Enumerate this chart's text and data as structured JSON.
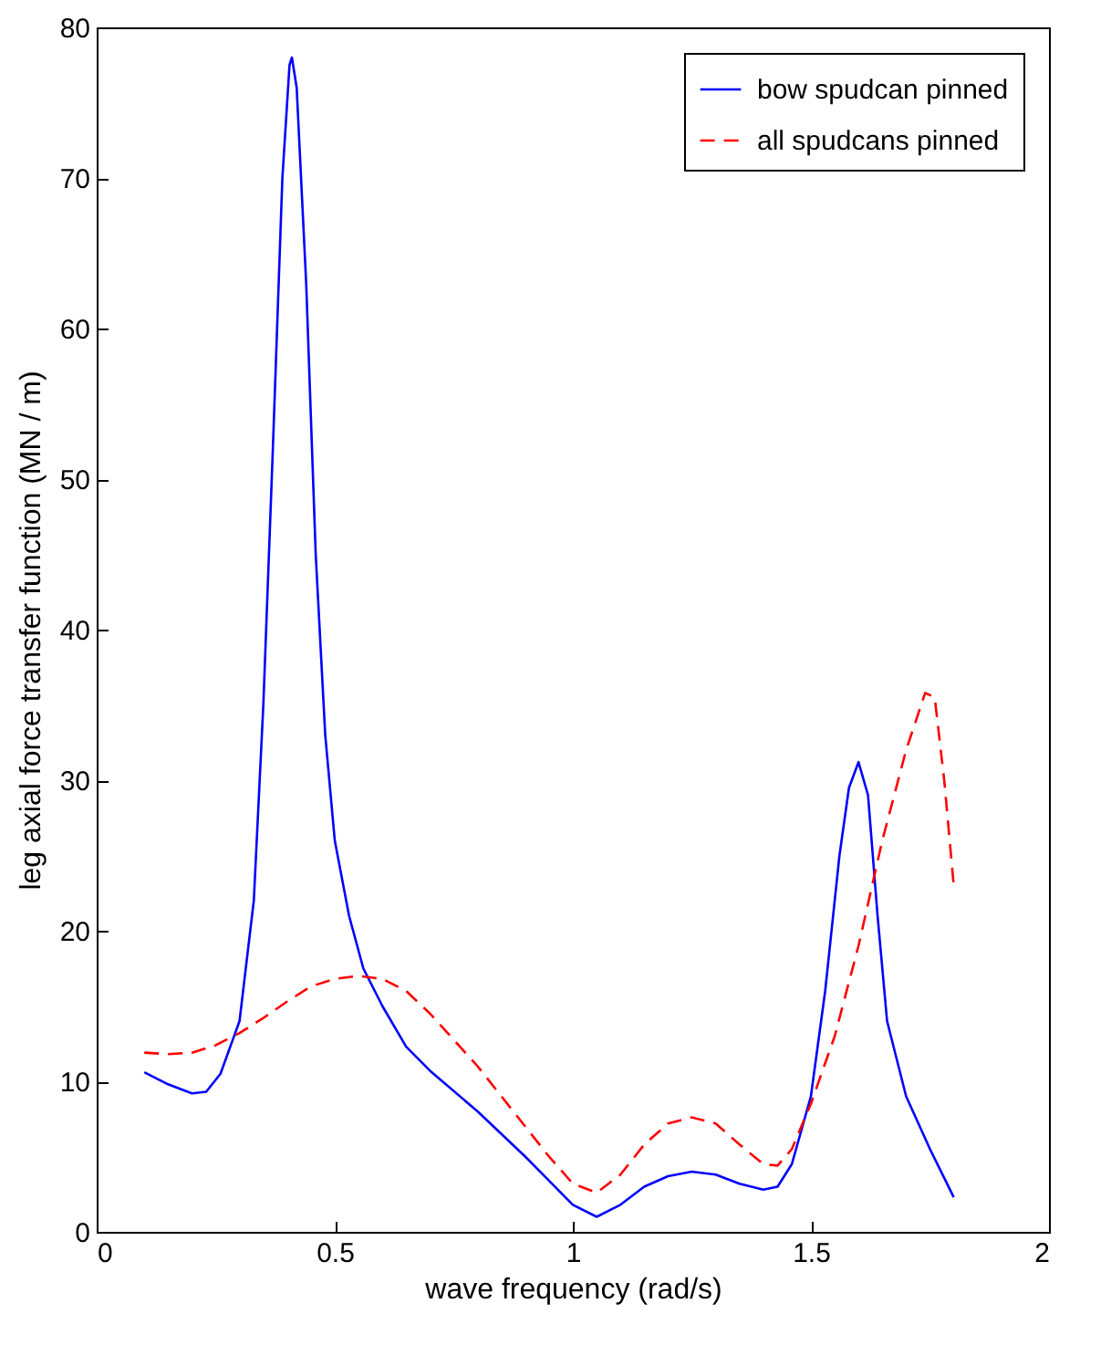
{
  "chart_data": {
    "type": "line",
    "xlabel": "wave frequency (rad/s)",
    "ylabel": "leg axial force transfer function (MN / m)",
    "xlim": [
      0,
      2
    ],
    "ylim": [
      0,
      80
    ],
    "xticks": [
      0,
      0.5,
      1,
      1.5,
      2
    ],
    "yticks": [
      0,
      10,
      20,
      30,
      40,
      50,
      60,
      70,
      80
    ],
    "grid": false,
    "legend": "top right",
    "series": [
      {
        "name": "bow spudcan pinned",
        "color": "#0000ff",
        "line_style": "solid",
        "x": [
          0.1,
          0.15,
          0.2,
          0.23,
          0.26,
          0.3,
          0.33,
          0.35,
          0.37,
          0.39,
          0.405,
          0.41,
          0.42,
          0.44,
          0.46,
          0.48,
          0.5,
          0.53,
          0.56,
          0.6,
          0.65,
          0.7,
          0.8,
          0.9,
          1.0,
          1.05,
          1.1,
          1.15,
          1.2,
          1.25,
          1.3,
          1.35,
          1.4,
          1.43,
          1.46,
          1.5,
          1.53,
          1.56,
          1.58,
          1.6,
          1.62,
          1.64,
          1.66,
          1.7,
          1.75,
          1.8
        ],
        "values": [
          10.6,
          9.8,
          9.2,
          9.3,
          10.5,
          14,
          22,
          35,
          52,
          70,
          77.5,
          78,
          76,
          63,
          45,
          33,
          26,
          21,
          17.5,
          15,
          12.3,
          10.7,
          8,
          5,
          1.8,
          1,
          1.8,
          3,
          3.7,
          4,
          3.8,
          3.2,
          2.8,
          3,
          4.5,
          9,
          16,
          25,
          29.5,
          31.2,
          29,
          21,
          14,
          9,
          5.5,
          2.3
        ]
      },
      {
        "name": "all spudcans pinned",
        "color": "#ff0000",
        "line_style": "dashed",
        "x": [
          0.1,
          0.15,
          0.2,
          0.25,
          0.3,
          0.35,
          0.4,
          0.45,
          0.5,
          0.55,
          0.6,
          0.65,
          0.7,
          0.8,
          0.9,
          0.95,
          1.0,
          1.05,
          1.1,
          1.15,
          1.2,
          1.25,
          1.3,
          1.35,
          1.4,
          1.43,
          1.46,
          1.5,
          1.55,
          1.6,
          1.65,
          1.7,
          1.74,
          1.76,
          1.78,
          1.8
        ],
        "values": [
          11.9,
          11.8,
          11.9,
          12.4,
          13.2,
          14.2,
          15.3,
          16.3,
          16.8,
          17,
          16.8,
          16,
          14.5,
          11,
          7,
          5,
          3.2,
          2.6,
          3.8,
          5.8,
          7.2,
          7.6,
          7.2,
          5.8,
          4.5,
          4.4,
          5.5,
          8.5,
          13,
          19,
          26,
          32,
          35.8,
          35.5,
          30,
          23
        ]
      }
    ]
  }
}
